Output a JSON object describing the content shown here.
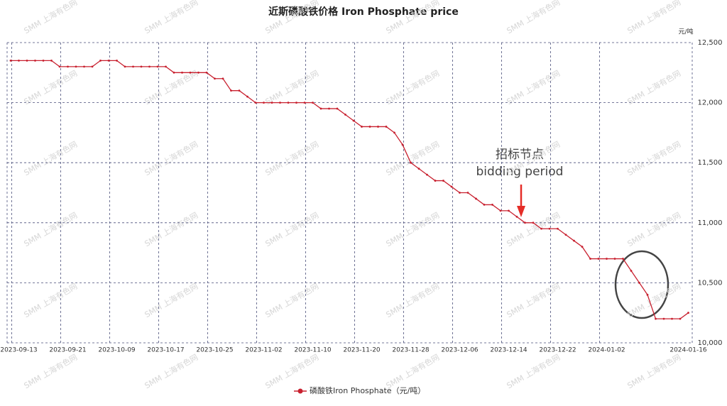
{
  "chart_data": {
    "type": "line",
    "title": "近斯磷酸铁价格 Iron Phosphate  price",
    "y_unit": "元/吨",
    "watermark": "SMM 上海有色网",
    "annotation": [
      "招标节点",
      "bidding period"
    ],
    "categories": [
      null,
      "2023-09-13",
      null,
      null,
      null,
      null,
      null,
      "2023-09-21",
      null,
      null,
      null,
      null,
      null,
      "2023-10-09",
      null,
      null,
      null,
      null,
      null,
      "2023-10-17",
      null,
      null,
      null,
      null,
      null,
      "2023-10-25",
      null,
      null,
      null,
      null,
      null,
      "2023-11-02",
      null,
      null,
      null,
      null,
      null,
      "2023-11-10",
      null,
      null,
      null,
      null,
      null,
      "2023-11-20",
      null,
      null,
      null,
      null,
      null,
      "2023-11-28",
      null,
      null,
      null,
      null,
      null,
      "2023-12-06",
      null,
      null,
      null,
      null,
      null,
      "2023-12-14",
      null,
      null,
      null,
      null,
      null,
      "2023-12-22",
      null,
      null,
      null,
      null,
      null,
      "2024-01-02",
      null,
      null,
      null,
      null,
      null,
      null,
      null,
      null,
      null,
      "2024-01-16"
    ],
    "series": [
      {
        "name": "磷酸铁Iron Phosphate（元/吨）",
        "color": "#c8202f",
        "values": [
          12350,
          12350,
          12350,
          12350,
          12350,
          12350,
          12300,
          12300,
          12300,
          12300,
          12300,
          12350,
          12350,
          12350,
          12300,
          12300,
          12300,
          12300,
          12300,
          12300,
          12250,
          12250,
          12250,
          12250,
          12250,
          12200,
          12200,
          12100,
          12100,
          12050,
          12000,
          12000,
          12000,
          12000,
          12000,
          12000,
          12000,
          12000,
          11950,
          11950,
          11950,
          11900,
          11850,
          11800,
          11800,
          11800,
          11800,
          11750,
          11650,
          11500,
          11450,
          11400,
          11350,
          11350,
          11300,
          11250,
          11250,
          11200,
          11150,
          11150,
          11100,
          11100,
          11050,
          11000,
          11000,
          10950,
          10950,
          10950,
          10900,
          10850,
          10800,
          10700,
          10700,
          10700,
          10700,
          10700,
          10600,
          10500,
          10400,
          10200,
          10200,
          10200,
          10200,
          10250
        ]
      }
    ],
    "ylim": [
      10000,
      12500
    ],
    "yticks": [
      {
        "value": 10000,
        "label": "10,000"
      },
      {
        "value": 10500,
        "label": "10,500"
      },
      {
        "value": 11000,
        "label": "11,000"
      },
      {
        "value": 11500,
        "label": "11,500"
      },
      {
        "value": 12000,
        "label": "12,000"
      },
      {
        "value": 12500,
        "label": "12,500"
      }
    ],
    "grid": true
  }
}
